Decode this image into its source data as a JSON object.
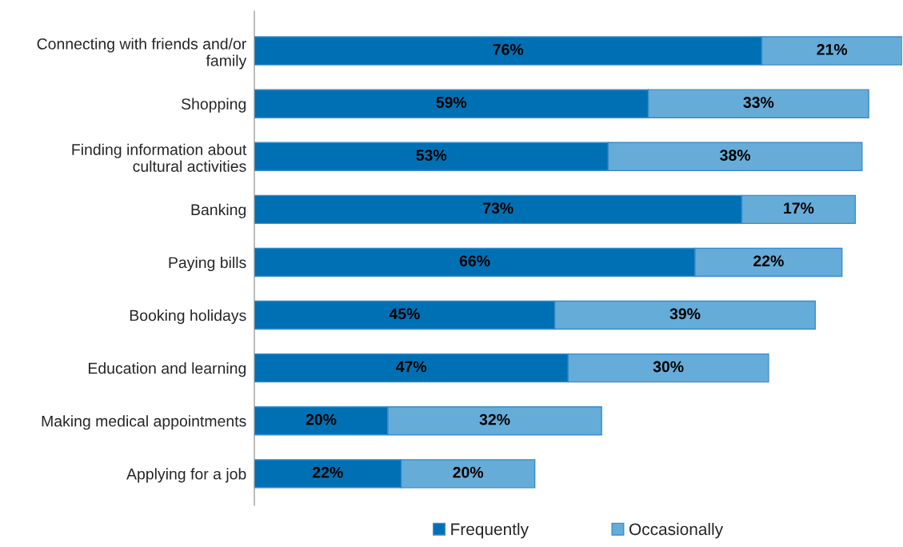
{
  "chart_data": {
    "type": "bar",
    "orientation": "horizontal",
    "stacked": true,
    "categories": [
      "Connecting with friends and/or family",
      "Shopping",
      "Finding information about cultural activities",
      "Banking",
      "Paying bills",
      "Booking holidays",
      "Education and learning",
      "Making medical appointments",
      "Applying for a job"
    ],
    "series": [
      {
        "name": "Frequently",
        "color": "#0070b4",
        "values": [
          76,
          59,
          53,
          73,
          66,
          45,
          47,
          20,
          22
        ],
        "value_labels": [
          "76%",
          "59%",
          "53%",
          "73%",
          "66%",
          "45%",
          "47%",
          "20%",
          "22%"
        ]
      },
      {
        "name": "Occasionally",
        "color": "#66acd8",
        "values": [
          21,
          33,
          38,
          17,
          22,
          39,
          30,
          32,
          20
        ],
        "value_labels": [
          "21%",
          "33%",
          "38%",
          "17%",
          "22%",
          "39%",
          "30%",
          "32%",
          "20%"
        ]
      }
    ],
    "tick_labels": "y",
    "legend": "bottom",
    "grid": false
  }
}
